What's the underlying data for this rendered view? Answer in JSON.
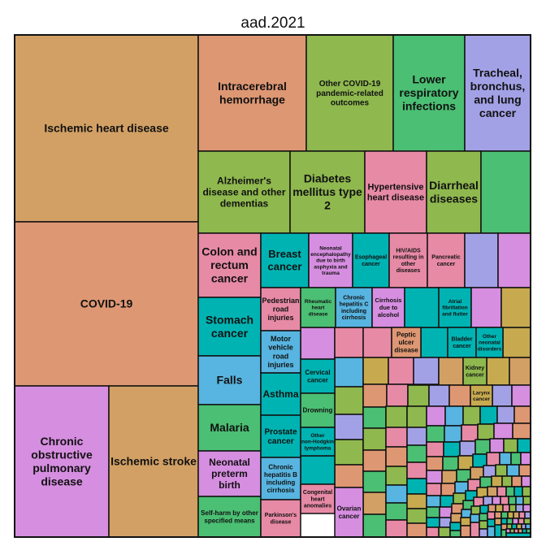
{
  "chart_data": {
    "type": "treemap",
    "title": "aad.2021",
    "colors": {
      "tan": "#d2a064",
      "salmon": "#de9773",
      "olive": "#8fb84e",
      "green": "#4bbf73",
      "lavender": "#a3a1e6",
      "cyan": "#00b3b3",
      "pink": "#e78aa6",
      "skyblue": "#58b4e0",
      "violet": "#d68ee0",
      "gold": "#c7aa50"
    },
    "tiles": [
      {
        "label": "Ischemic heart disease",
        "color": "tan"
      },
      {
        "label": "COVID-19",
        "color": "salmon"
      },
      {
        "label": "Chronic obstructive pulmonary disease",
        "color": "violet"
      },
      {
        "label": "Ischemic stroke",
        "color": "tan"
      },
      {
        "label": "Intracerebral hemorrhage",
        "color": "salmon"
      },
      {
        "label": "Other COVID-19 pandemic-related outcomes",
        "color": "olive"
      },
      {
        "label": "Lower respiratory infections",
        "color": "green"
      },
      {
        "label": "Tracheal, bronchus, and lung cancer",
        "color": "lavender"
      },
      {
        "label": "Alzheimer's disease and other dementias",
        "color": "olive"
      },
      {
        "label": "Diabetes mellitus type 2",
        "color": "olive"
      },
      {
        "label": "Hypertensive heart disease",
        "color": "pink"
      },
      {
        "label": "Diarrheal diseases",
        "color": "olive"
      },
      {
        "label": "",
        "color": "green"
      },
      {
        "label": "Colon and rectum cancer",
        "color": "pink"
      },
      {
        "label": "Breast cancer",
        "color": "cyan"
      },
      {
        "label": "Neonatal encephalopathy due to birth asphyxia and trauma",
        "color": "violet"
      },
      {
        "label": "Esophageal cancer",
        "color": "cyan"
      },
      {
        "label": "HIV/AIDS resulting in other diseases",
        "color": "pink"
      },
      {
        "label": "Pancreatic cancer",
        "color": "pink"
      },
      {
        "label": "",
        "color": "lavender"
      },
      {
        "label": "",
        "color": "violet"
      },
      {
        "label": "Stomach cancer",
        "color": "cyan"
      },
      {
        "label": "Falls",
        "color": "skyblue"
      },
      {
        "label": "Malaria",
        "color": "green"
      },
      {
        "label": "Neonatal preterm birth",
        "color": "violet"
      },
      {
        "label": "Self-harm by other specified means",
        "color": "green"
      },
      {
        "label": "Pedestrian road injuries",
        "color": "pink"
      },
      {
        "label": "Motor vehicle road injuries",
        "color": "skyblue"
      },
      {
        "label": "Asthma",
        "color": "cyan"
      },
      {
        "label": "Prostate cancer",
        "color": "cyan"
      },
      {
        "label": "Chronic hepatitis B including cirrhosis",
        "color": "skyblue"
      },
      {
        "label": "Parkinson's disease",
        "color": "pink"
      },
      {
        "label": "Rheumatic heart disease",
        "color": "green"
      },
      {
        "label": "Chronic hepatitis C including cirrhosis",
        "color": "skyblue"
      },
      {
        "label": "Cirrhosis due to alcohol",
        "color": "violet"
      },
      {
        "label": "",
        "color": "cyan"
      },
      {
        "label": "Atrial fibrillation and flutter",
        "color": "cyan"
      },
      {
        "label": "",
        "color": "violet"
      },
      {
        "label": "",
        "color": "gold"
      },
      {
        "label": "Cervical cancer",
        "color": "cyan"
      },
      {
        "label": "Drowning",
        "color": "green"
      },
      {
        "label": "Other non-Hodgkin lymphoma",
        "color": "cyan"
      },
      {
        "label": "Congenital heart anomalies",
        "color": "pink"
      },
      {
        "label": "Ovarian cancer",
        "color": "violet"
      },
      {
        "label": "Peptic ulcer disease",
        "color": "salmon"
      },
      {
        "label": "Bladder cancer",
        "color": "cyan"
      },
      {
        "label": "Other neonatal disorders",
        "color": "cyan"
      },
      {
        "label": "Kidney cancer",
        "color": "olive"
      },
      {
        "label": "Larynx cancer",
        "color": "gold"
      }
    ]
  }
}
